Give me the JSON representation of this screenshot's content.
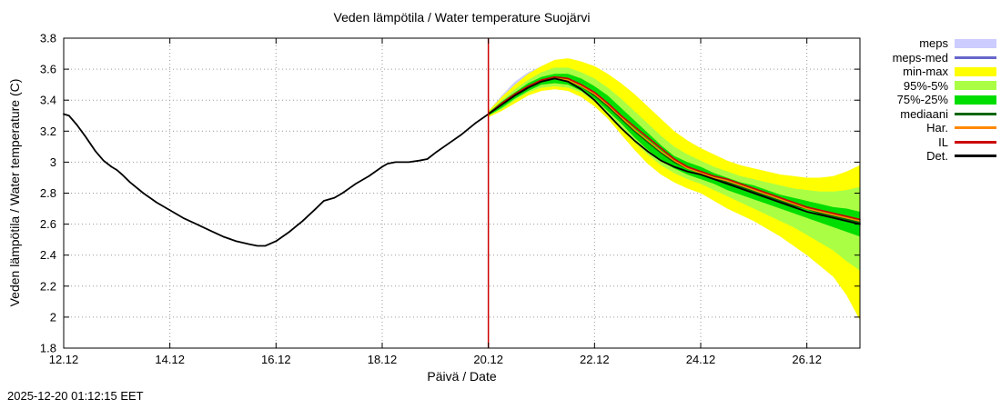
{
  "footer": {
    "timestamp": "2025-12-20 01:12:15 EET"
  },
  "chart_data": {
    "type": "line",
    "title": "Veden lämpötila / Water temperature Suojärvi",
    "xlabel": "Päivä / Date",
    "ylabel": "Veden lämpötila / Water temperature (C)",
    "xlim": [
      12,
      27
    ],
    "ylim": [
      1.8,
      3.8
    ],
    "grid": true,
    "legend_position": "right-top",
    "x_ticks": [
      {
        "value": 12,
        "label": "12.12"
      },
      {
        "value": 14,
        "label": "14.12"
      },
      {
        "value": 16,
        "label": "16.12"
      },
      {
        "value": 18,
        "label": "18.12"
      },
      {
        "value": 20,
        "label": "20.12"
      },
      {
        "value": 22,
        "label": "22.12"
      },
      {
        "value": 24,
        "label": "24.12"
      },
      {
        "value": 26,
        "label": "26.12"
      }
    ],
    "y_ticks": [
      {
        "value": 1.8,
        "label": "1.8"
      },
      {
        "value": 2.0,
        "label": "2"
      },
      {
        "value": 2.2,
        "label": "2.2"
      },
      {
        "value": 2.4,
        "label": "2.4"
      },
      {
        "value": 2.6,
        "label": "2.6"
      },
      {
        "value": 2.8,
        "label": "2.8"
      },
      {
        "value": 3.0,
        "label": "3"
      },
      {
        "value": 3.2,
        "label": "3.2"
      },
      {
        "value": 3.4,
        "label": "3.4"
      },
      {
        "value": 3.6,
        "label": "3.6"
      },
      {
        "value": 3.8,
        "label": "3.8"
      }
    ],
    "now_line": {
      "x": 20,
      "color": "#cc0000"
    },
    "history": {
      "name": "Det. observed",
      "color": "#000000",
      "width": 1.8,
      "x": [
        12.0,
        12.1,
        12.25,
        12.4,
        12.5,
        12.6,
        12.75,
        12.9,
        13.0,
        13.1,
        13.25,
        13.5,
        13.75,
        14.0,
        14.25,
        14.5,
        14.75,
        15.0,
        15.25,
        15.5,
        15.65,
        15.8,
        16.0,
        16.25,
        16.5,
        16.75,
        16.9,
        17.1,
        17.25,
        17.5,
        17.75,
        18.0,
        18.1,
        18.25,
        18.5,
        18.7,
        18.85,
        19.0,
        19.25,
        19.5,
        19.75,
        20.0
      ],
      "y": [
        3.31,
        3.3,
        3.24,
        3.17,
        3.12,
        3.07,
        3.01,
        2.97,
        2.95,
        2.92,
        2.87,
        2.8,
        2.74,
        2.69,
        2.64,
        2.6,
        2.56,
        2.52,
        2.49,
        2.47,
        2.46,
        2.46,
        2.49,
        2.55,
        2.62,
        2.7,
        2.75,
        2.77,
        2.8,
        2.86,
        2.91,
        2.97,
        2.99,
        3.0,
        3.0,
        3.01,
        3.02,
        3.06,
        3.12,
        3.18,
        3.25,
        3.31
      ]
    },
    "forecast_x": [
      20.0,
      20.25,
      20.5,
      20.75,
      21.0,
      21.25,
      21.5,
      21.75,
      22.0,
      22.25,
      22.5,
      22.75,
      23.0,
      23.25,
      23.5,
      23.75,
      24.0,
      24.25,
      24.5,
      24.75,
      25.0,
      25.25,
      25.5,
      25.75,
      26.0,
      26.25,
      26.5,
      26.75,
      27.0
    ],
    "bands": [
      {
        "name": "meps",
        "color": "#ccccff",
        "layer": "back",
        "x": [
          20.0,
          20.25,
          20.5,
          20.75,
          21.0,
          21.25,
          21.5,
          21.75,
          22.0,
          22.25,
          22.5
        ],
        "upper": [
          3.33,
          3.43,
          3.52,
          3.58,
          3.62,
          3.64,
          3.63,
          3.59,
          3.54,
          3.47,
          3.39
        ],
        "lower": [
          3.29,
          3.34,
          3.39,
          3.44,
          3.47,
          3.48,
          3.46,
          3.42,
          3.36,
          3.28,
          3.19
        ]
      },
      {
        "name": "min-max",
        "color": "#ffff00",
        "upper": [
          3.33,
          3.42,
          3.5,
          3.57,
          3.62,
          3.66,
          3.67,
          3.65,
          3.62,
          3.57,
          3.51,
          3.44,
          3.36,
          3.28,
          3.2,
          3.14,
          3.09,
          3.05,
          3.01,
          2.98,
          2.96,
          2.94,
          2.92,
          2.91,
          2.9,
          2.9,
          2.91,
          2.94,
          2.98
        ],
        "lower": [
          3.29,
          3.33,
          3.38,
          3.43,
          3.46,
          3.47,
          3.46,
          3.42,
          3.36,
          3.28,
          3.18,
          3.08,
          2.99,
          2.92,
          2.87,
          2.83,
          2.8,
          2.75,
          2.7,
          2.66,
          2.62,
          2.57,
          2.52,
          2.46,
          2.4,
          2.33,
          2.26,
          2.14,
          1.98
        ]
      },
      {
        "name": "95%-5%",
        "color": "#aaff44",
        "upper": [
          3.32,
          3.4,
          3.47,
          3.53,
          3.58,
          3.61,
          3.61,
          3.58,
          3.54,
          3.48,
          3.41,
          3.33,
          3.25,
          3.17,
          3.1,
          3.05,
          3.01,
          2.97,
          2.94,
          2.91,
          2.89,
          2.87,
          2.85,
          2.83,
          2.82,
          2.81,
          2.81,
          2.82,
          2.84
        ],
        "lower": [
          3.3,
          3.34,
          3.4,
          3.45,
          3.48,
          3.49,
          3.48,
          3.45,
          3.39,
          3.31,
          3.22,
          3.13,
          3.05,
          2.98,
          2.93,
          2.89,
          2.86,
          2.82,
          2.78,
          2.74,
          2.7,
          2.66,
          2.62,
          2.58,
          2.53,
          2.48,
          2.43,
          2.36,
          2.3
        ]
      },
      {
        "name": "75%-25%",
        "color": "#00dd00",
        "upper": [
          3.32,
          3.39,
          3.45,
          3.51,
          3.55,
          3.57,
          3.57,
          3.54,
          3.49,
          3.43,
          3.35,
          3.27,
          3.19,
          3.11,
          3.04,
          3.0,
          2.97,
          2.93,
          2.9,
          2.87,
          2.85,
          2.82,
          2.79,
          2.77,
          2.75,
          2.73,
          2.71,
          2.7,
          2.68
        ],
        "lower": [
          3.3,
          3.35,
          3.41,
          3.46,
          3.5,
          3.51,
          3.5,
          3.46,
          3.41,
          3.33,
          3.25,
          3.16,
          3.08,
          3.01,
          2.96,
          2.92,
          2.89,
          2.86,
          2.82,
          2.79,
          2.76,
          2.73,
          2.7,
          2.67,
          2.64,
          2.61,
          2.58,
          2.55,
          2.52
        ]
      }
    ],
    "lines": [
      {
        "name": "meps-med",
        "color": "#6666cc",
        "width": 1.5,
        "layer": "back",
        "x": [
          20.0,
          20.25,
          20.5,
          20.75,
          21.0,
          21.25,
          21.5,
          21.75,
          22.0,
          22.25,
          22.5
        ],
        "y": [
          3.31,
          3.38,
          3.45,
          3.5,
          3.54,
          3.56,
          3.55,
          3.51,
          3.45,
          3.37,
          3.29
        ]
      },
      {
        "name": "mediaani",
        "color": "#006600",
        "width": 1.5,
        "y": [
          3.31,
          3.37,
          3.43,
          3.48,
          3.52,
          3.54,
          3.53,
          3.49,
          3.43,
          3.36,
          3.28,
          3.2,
          3.13,
          3.06,
          3.0,
          2.96,
          2.93,
          2.9,
          2.87,
          2.84,
          2.81,
          2.78,
          2.75,
          2.72,
          2.7,
          2.67,
          2.65,
          2.63,
          2.61
        ]
      },
      {
        "name": "Har.",
        "color": "#ff8800",
        "width": 1.5,
        "y": [
          3.31,
          3.37,
          3.44,
          3.49,
          3.52,
          3.54,
          3.53,
          3.49,
          3.44,
          3.37,
          3.29,
          3.21,
          3.14,
          3.07,
          3.01,
          2.96,
          2.93,
          2.9,
          2.88,
          2.85,
          2.82,
          2.79,
          2.76,
          2.73,
          2.7,
          2.68,
          2.66,
          2.64,
          2.62
        ]
      },
      {
        "name": "IL",
        "color": "#cc0000",
        "width": 1.6,
        "y": [
          3.31,
          3.38,
          3.44,
          3.49,
          3.53,
          3.55,
          3.54,
          3.5,
          3.45,
          3.38,
          3.3,
          3.23,
          3.16,
          3.09,
          3.02,
          2.97,
          2.94,
          2.91,
          2.89,
          2.86,
          2.83,
          2.8,
          2.77,
          2.74,
          2.71,
          2.69,
          2.67,
          2.65,
          2.63
        ]
      },
      {
        "name": "Det.",
        "color": "#000000",
        "width": 1.8,
        "y": [
          3.31,
          3.37,
          3.43,
          3.48,
          3.52,
          3.54,
          3.52,
          3.47,
          3.4,
          3.31,
          3.22,
          3.14,
          3.07,
          3.01,
          2.97,
          2.94,
          2.92,
          2.89,
          2.86,
          2.83,
          2.8,
          2.77,
          2.74,
          2.71,
          2.68,
          2.66,
          2.64,
          2.62,
          2.6
        ]
      }
    ],
    "legend": [
      {
        "label": "meps",
        "type": "band",
        "color": "#ccccff"
      },
      {
        "label": "meps-med",
        "type": "line",
        "color": "#6666cc"
      },
      {
        "label": "min-max",
        "type": "band",
        "color": "#ffff00"
      },
      {
        "label": "95%-5%",
        "type": "band",
        "color": "#aaff44"
      },
      {
        "label": "75%-25%",
        "type": "band",
        "color": "#00dd00"
      },
      {
        "label": "mediaani",
        "type": "line",
        "color": "#006600"
      },
      {
        "label": "Har.",
        "type": "line",
        "color": "#ff8800"
      },
      {
        "label": "IL",
        "type": "line",
        "color": "#cc0000"
      },
      {
        "label": "Det.",
        "type": "line",
        "color": "#000000"
      }
    ]
  }
}
